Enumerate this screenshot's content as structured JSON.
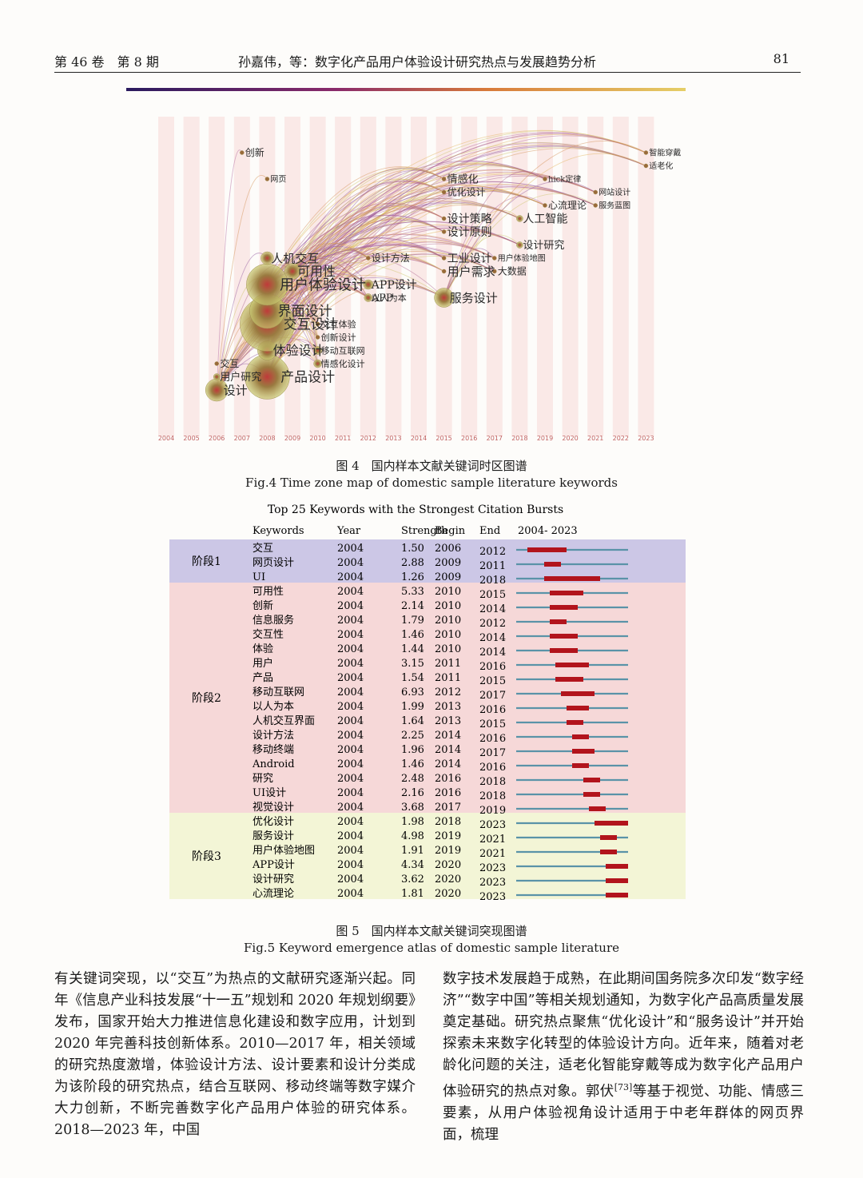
{
  "header": {
    "left": "第 46 卷　第 8 期",
    "center": "孙嘉伟，等：数字化产品用户体验设计研究热点与发展趋势分析",
    "page": "81"
  },
  "fig4": {
    "caption_cn": "图 4　国内样本文献关键词时区图谱",
    "caption_en": "Fig.4 Time zone map of domestic sample literature keywords",
    "years": [
      "2004",
      "2005",
      "2006",
      "2007",
      "2008",
      "2009",
      "2010",
      "2011",
      "2012",
      "2013",
      "2014",
      "2015",
      "2016",
      "2017",
      "2018",
      "2019",
      "2020",
      "2021",
      "2022",
      "2023"
    ],
    "keywords": [
      {
        "text": "设计",
        "year": 2006,
        "row": 0,
        "size": 15,
        "node": 14
      },
      {
        "text": "用户研究",
        "year": 2006,
        "row": 1,
        "size": 13,
        "node": 4
      },
      {
        "text": "交互",
        "year": 2006,
        "row": 2,
        "size": 12,
        "node": 0
      },
      {
        "text": "产品设计",
        "year": 2008,
        "row": 1,
        "size": 17,
        "node": 28
      },
      {
        "text": "体验设计",
        "year": 2008,
        "row": 3,
        "size": 16,
        "node": 12
      },
      {
        "text": "交互设计",
        "year": 2008,
        "row": 5,
        "size": 17,
        "node": 34
      },
      {
        "text": "界面设计",
        "year": 2008,
        "row": 6,
        "size": 17,
        "node": 22
      },
      {
        "text": "用户体验设计",
        "year": 2008,
        "row": 8,
        "size": 18,
        "node": 26
      },
      {
        "text": "可用性",
        "year": 2009,
        "row": 9,
        "size": 16,
        "node": 10
      },
      {
        "text": "人机交互",
        "year": 2008,
        "row": 10,
        "size": 15,
        "node": 8
      },
      {
        "text": "创新",
        "year": 2007,
        "row": 18,
        "size": 12,
        "node": 0
      },
      {
        "text": "网页",
        "year": 2008,
        "row": 16,
        "size": 10,
        "node": 0
      },
      {
        "text": "交互体验",
        "year": 2010,
        "row": 5,
        "size": 11,
        "node": 0
      },
      {
        "text": "创新设计",
        "year": 2010,
        "row": 4,
        "size": 11,
        "node": 0
      },
      {
        "text": "移动互联网",
        "year": 2010,
        "row": 3,
        "size": 11,
        "node": 5
      },
      {
        "text": "情感化设计",
        "year": 2010,
        "row": 2,
        "size": 11,
        "node": 5
      },
      {
        "text": "以人为本",
        "year": 2012,
        "row": 7,
        "size": 11,
        "node": 0
      },
      {
        "text": "APP设计",
        "year": 2012,
        "row": 8,
        "size": 14,
        "node": 6
      },
      {
        "text": "APP",
        "year": 2012,
        "row": 7,
        "size": 13,
        "node": 5
      },
      {
        "text": "设计方法",
        "year": 2012,
        "row": 10,
        "size": 12,
        "node": 0
      },
      {
        "text": "用户需求",
        "year": 2015,
        "row": 9,
        "size": 15,
        "node": 0
      },
      {
        "text": "服务设计",
        "year": 2015,
        "row": 7,
        "size": 15,
        "node": 12
      },
      {
        "text": "工业设计",
        "year": 2015,
        "row": 10,
        "size": 14,
        "node": 0
      },
      {
        "text": "设计原则",
        "year": 2015,
        "row": 12,
        "size": 14,
        "node": 0
      },
      {
        "text": "设计策略",
        "year": 2015,
        "row": 13,
        "size": 14,
        "node": 0
      },
      {
        "text": "情感化",
        "year": 2015,
        "row": 16,
        "size": 13,
        "node": 0
      },
      {
        "text": "优化设计",
        "year": 2015,
        "row": 15,
        "size": 12,
        "node": 0
      },
      {
        "text": "人工智能",
        "year": 2018,
        "row": 13,
        "size": 14,
        "node": 4
      },
      {
        "text": "设计研究",
        "year": 2018,
        "row": 11,
        "size": 13,
        "node": 4
      },
      {
        "text": "大数据",
        "year": 2017,
        "row": 9,
        "size": 12,
        "node": 0
      },
      {
        "text": "用户体验地图",
        "year": 2017,
        "row": 10,
        "size": 10,
        "node": 0
      },
      {
        "text": "心流理论",
        "year": 2019,
        "row": 14,
        "size": 12,
        "node": 0
      },
      {
        "text": "智能穿戴",
        "year": 2023,
        "row": 18,
        "size": 10,
        "node": 0
      },
      {
        "text": "适老化",
        "year": 2023,
        "row": 17,
        "size": 10,
        "node": 0
      },
      {
        "text": "服务蓝图",
        "year": 2021,
        "row": 14,
        "size": 10,
        "node": 0
      },
      {
        "text": "hick定律",
        "year": 2019,
        "row": 16,
        "size": 10,
        "node": 0
      },
      {
        "text": "网站设计",
        "year": 2021,
        "row": 15,
        "size": 10,
        "node": 0
      }
    ]
  },
  "fig5": {
    "title": "Top 25 Keywords with the Strongest Citation Bursts",
    "columns": [
      "Keywords",
      "Year",
      "Strength",
      "Begin",
      "End",
      "2004- 2023"
    ],
    "range_start": 2004,
    "range_end": 2023,
    "stages": [
      {
        "label": "阶段1",
        "rows": 3,
        "color": "#ccc7e6"
      },
      {
        "label": "阶段2",
        "rows": 16,
        "color": "#f6d8d8"
      },
      {
        "label": "阶段3",
        "rows": 6,
        "color": "#f3f5d6"
      }
    ],
    "rows": [
      {
        "keyword": "交互",
        "year": "2004",
        "strength": "1.50",
        "begin": "2006",
        "end": "2012"
      },
      {
        "keyword": "网页设计",
        "year": "2004",
        "strength": "2.88",
        "begin": "2009",
        "end": "2011"
      },
      {
        "keyword": "UI",
        "year": "2004",
        "strength": "1.26",
        "begin": "2009",
        "end": "2018"
      },
      {
        "keyword": "可用性",
        "year": "2004",
        "strength": "5.33",
        "begin": "2010",
        "end": "2015"
      },
      {
        "keyword": "创新",
        "year": "2004",
        "strength": "2.14",
        "begin": "2010",
        "end": "2014"
      },
      {
        "keyword": "信息服务",
        "year": "2004",
        "strength": "1.79",
        "begin": "2010",
        "end": "2012"
      },
      {
        "keyword": "交互性",
        "year": "2004",
        "strength": "1.46",
        "begin": "2010",
        "end": "2014"
      },
      {
        "keyword": "体验",
        "year": "2004",
        "strength": "1.44",
        "begin": "2010",
        "end": "2014"
      },
      {
        "keyword": "用户",
        "year": "2004",
        "strength": "3.15",
        "begin": "2011",
        "end": "2016"
      },
      {
        "keyword": "产品",
        "year": "2004",
        "strength": "1.54",
        "begin": "2011",
        "end": "2015"
      },
      {
        "keyword": "移动互联网",
        "year": "2004",
        "strength": "6.93",
        "begin": "2012",
        "end": "2017"
      },
      {
        "keyword": "以人为本",
        "year": "2004",
        "strength": "1.99",
        "begin": "2013",
        "end": "2016"
      },
      {
        "keyword": "人机交互界面",
        "year": "2004",
        "strength": "1.64",
        "begin": "2013",
        "end": "2015"
      },
      {
        "keyword": "设计方法",
        "year": "2004",
        "strength": "2.25",
        "begin": "2014",
        "end": "2016"
      },
      {
        "keyword": "移动终端",
        "year": "2004",
        "strength": "1.96",
        "begin": "2014",
        "end": "2017"
      },
      {
        "keyword": "Android",
        "year": "2004",
        "strength": "1.46",
        "begin": "2014",
        "end": "2016"
      },
      {
        "keyword": "研究",
        "year": "2004",
        "strength": "2.48",
        "begin": "2016",
        "end": "2018"
      },
      {
        "keyword": "UI设计",
        "year": "2004",
        "strength": "2.16",
        "begin": "2016",
        "end": "2018"
      },
      {
        "keyword": "视觉设计",
        "year": "2004",
        "strength": "3.68",
        "begin": "2017",
        "end": "2019"
      },
      {
        "keyword": "优化设计",
        "year": "2004",
        "strength": "1.98",
        "begin": "2018",
        "end": "2023"
      },
      {
        "keyword": "服务设计",
        "year": "2004",
        "strength": "4.98",
        "begin": "2019",
        "end": "2021"
      },
      {
        "keyword": "用户体验地图",
        "year": "2004",
        "strength": "1.91",
        "begin": "2019",
        "end": "2021"
      },
      {
        "keyword": "APP设计",
        "year": "2004",
        "strength": "4.34",
        "begin": "2020",
        "end": "2023"
      },
      {
        "keyword": "设计研究",
        "year": "2004",
        "strength": "3.62",
        "begin": "2020",
        "end": "2023"
      },
      {
        "keyword": "心流理论",
        "year": "2004",
        "strength": "1.81",
        "begin": "2020",
        "end": "2023"
      }
    ],
    "caption_cn": "图 5　国内样本文献关键词突现图谱",
    "caption_en": "Fig.5 Keyword emergence atlas of domestic sample literature"
  },
  "body": {
    "left": "有关键词突现，以“交互”为热点的文献研究逐渐兴起。同年《信息产业科技发展“十一五”规划和 2020 年规划纲要》发布，国家开始大力推进信息化建设和数字应用，计划到 2020 年完善科技创新体系。2010—2017 年，相关领域的研究热度激增，体验设计方法、设计要素和设计分类成为该阶段的研究热点，结合互联网、移动终端等数字媒介大力创新，不断完善数字化产品用户体验的研究体系。2018—2023 年，中国",
    "right_a": "数字技术发展趋于成熟，在此期间国务院多次印发“数字经济”“数字中国”等相关规划通知，为数字化产品高质量发展奠定基础。研究热点聚焦“优化设计”和“服务设计”并开始探索未来数字化转型的体验设计方向。近年来，随着对老龄化问题的关注，适老化智能穿戴等成为数字化产品用户体验研究的热点对象。郭伏",
    "right_ref": "[73]",
    "right_b": "等基于视觉、功能、情感三要素，从用户体验视角设计适用于中老年群体的网页界面，梳理"
  }
}
